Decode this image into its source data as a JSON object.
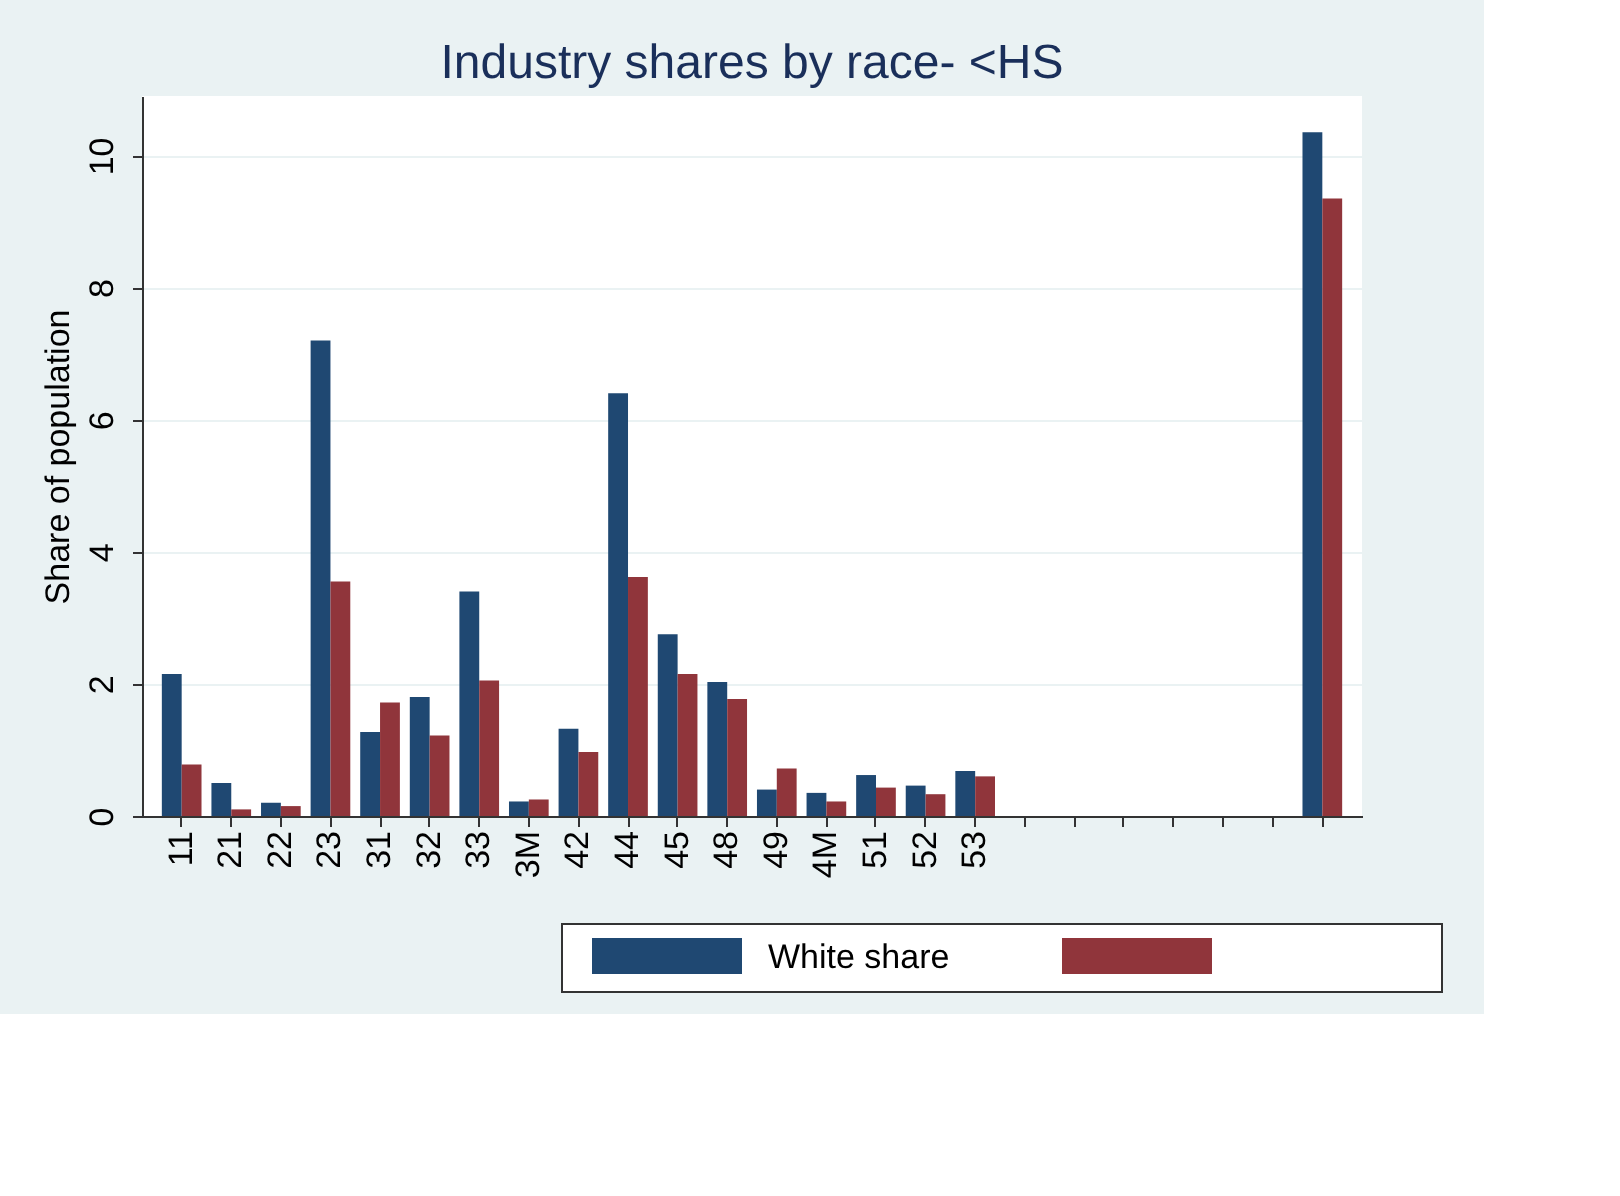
{
  "chart_data": {
    "type": "bar",
    "title": "Industry shares by race- <HS",
    "ylabel": "Share of population",
    "categories": [
      "11",
      "21",
      "22",
      "23",
      "31",
      "32",
      "33",
      "3M",
      "42",
      "44",
      "45",
      "48",
      "49",
      "4M",
      "51",
      "52",
      "53",
      null,
      null,
      null,
      null,
      null,
      null,
      null
    ],
    "series": [
      {
        "name": "White share",
        "color": "#1f4872",
        "values": [
          2.15,
          0.5,
          0.2,
          7.2,
          1.27,
          1.8,
          3.4,
          0.22,
          1.32,
          6.4,
          2.75,
          2.03,
          0.4,
          0.35,
          0.62,
          0.46,
          0.68,
          null,
          null,
          null,
          null,
          null,
          null,
          10.35
        ]
      },
      {
        "color": "#90353b",
        "values": [
          0.78,
          0.1,
          0.15,
          3.55,
          1.72,
          1.22,
          2.05,
          0.25,
          0.97,
          3.62,
          2.15,
          1.77,
          0.72,
          0.22,
          0.43,
          0.33,
          0.6,
          null,
          null,
          null,
          null,
          null,
          null,
          9.35
        ]
      }
    ],
    "ylim": [
      0,
      10.9
    ],
    "yticks": [
      0,
      2,
      4,
      6,
      8,
      10
    ],
    "grid": "y",
    "legend": "bottom"
  }
}
